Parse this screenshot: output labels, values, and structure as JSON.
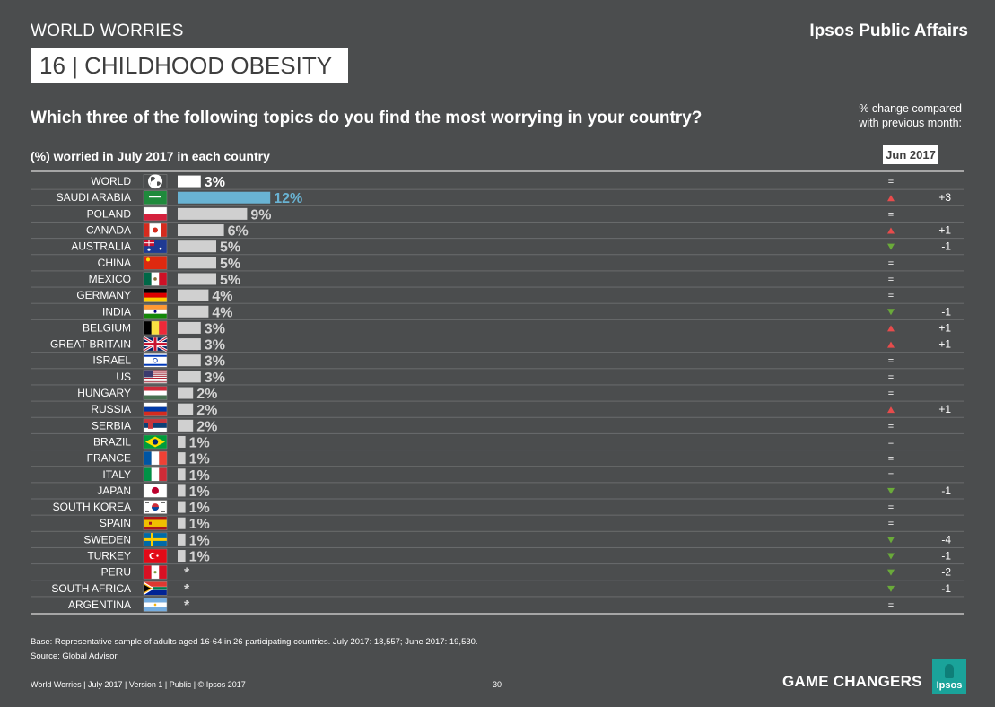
{
  "header": {
    "kicker": "WORLD WORRIES",
    "brand": "Ipsos Public Affairs",
    "title": "16 | CHILDHOOD OBESITY",
    "question": "Which three of the following topics do you find the most worrying in your country?",
    "change_note_line1": "% change compared",
    "change_note_line2": "with previous month:",
    "subhead": "(%) worried in July 2017 in each country",
    "month": "Jun 2017"
  },
  "colors": {
    "background": "#4b4d4e",
    "bar": "#d0d0d0",
    "world_bar": "#ffffff",
    "highlight_bar": "#69b3d3",
    "up": "#e74c4c",
    "down": "#6aaa3a"
  },
  "chart_data": {
    "type": "bar",
    "orientation": "horizontal",
    "title": "(%) worried in July 2017 in each country",
    "categories": [
      "WORLD",
      "SAUDI ARABIA",
      "POLAND",
      "CANADA",
      "AUSTRALIA",
      "CHINA",
      "MEXICO",
      "GERMANY",
      "INDIA",
      "BELGIUM",
      "GREAT BRITAIN",
      "ISRAEL",
      "US",
      "HUNGARY",
      "RUSSIA",
      "SERBIA",
      "BRAZIL",
      "FRANCE",
      "ITALY",
      "JAPAN",
      "SOUTH KOREA",
      "SPAIN",
      "SWEDEN",
      "TURKEY",
      "PERU",
      "SOUTH AFRICA",
      "ARGENTINA"
    ],
    "values": [
      3,
      12,
      9,
      6,
      5,
      5,
      5,
      4,
      4,
      3,
      3,
      3,
      3,
      2,
      2,
      2,
      1,
      1,
      1,
      1,
      1,
      1,
      1,
      1,
      null,
      null,
      null
    ],
    "value_labels": [
      "3%",
      "12%",
      "9%",
      "6%",
      "5%",
      "5%",
      "5%",
      "4%",
      "4%",
      "3%",
      "3%",
      "3%",
      "3%",
      "2%",
      "2%",
      "2%",
      "1%",
      "1%",
      "1%",
      "1%",
      "1%",
      "1%",
      "1%",
      "1%",
      "*",
      "*",
      "*"
    ],
    "change_direction": [
      "=",
      "up",
      "=",
      "up",
      "down",
      "=",
      "=",
      "=",
      "down",
      "up",
      "up",
      "=",
      "=",
      "=",
      "up",
      "=",
      "=",
      "=",
      "=",
      "down",
      "=",
      "=",
      "down",
      "down",
      "down",
      "down",
      "="
    ],
    "change_labels": [
      "",
      "+3",
      "",
      "+1",
      "-1",
      "",
      "",
      "",
      "-1",
      "+1",
      "+1",
      "",
      "",
      "",
      "+1",
      "",
      "",
      "",
      "",
      "-1",
      "",
      "",
      "-4",
      "-1",
      "-2",
      "-1",
      ""
    ],
    "flags": [
      "globe-icon",
      "saudi-arabia-flag",
      "poland-flag",
      "canada-flag",
      "australia-flag",
      "china-flag",
      "mexico-flag",
      "germany-flag",
      "india-flag",
      "belgium-flag",
      "great-britain-flag",
      "israel-flag",
      "us-flag",
      "hungary-flag",
      "russia-flag",
      "serbia-flag",
      "brazil-flag",
      "france-flag",
      "italy-flag",
      "japan-flag",
      "south-korea-flag",
      "spain-flag",
      "sweden-flag",
      "turkey-flag",
      "peru-flag",
      "south-africa-flag",
      "argentina-flag"
    ]
  },
  "footer": {
    "base": "Base: Representative sample of adults aged 16-64 in 26 participating countries. July 2017: 18,557; June 2017: 19,530.",
    "source": "Source: Global Advisor",
    "left": "World Worries  |  July 2017  |  Version 1  |  Public  |  © Ipsos 2017",
    "page": "30",
    "tagline": "GAME CHANGERS",
    "logo": "Ipsos"
  }
}
